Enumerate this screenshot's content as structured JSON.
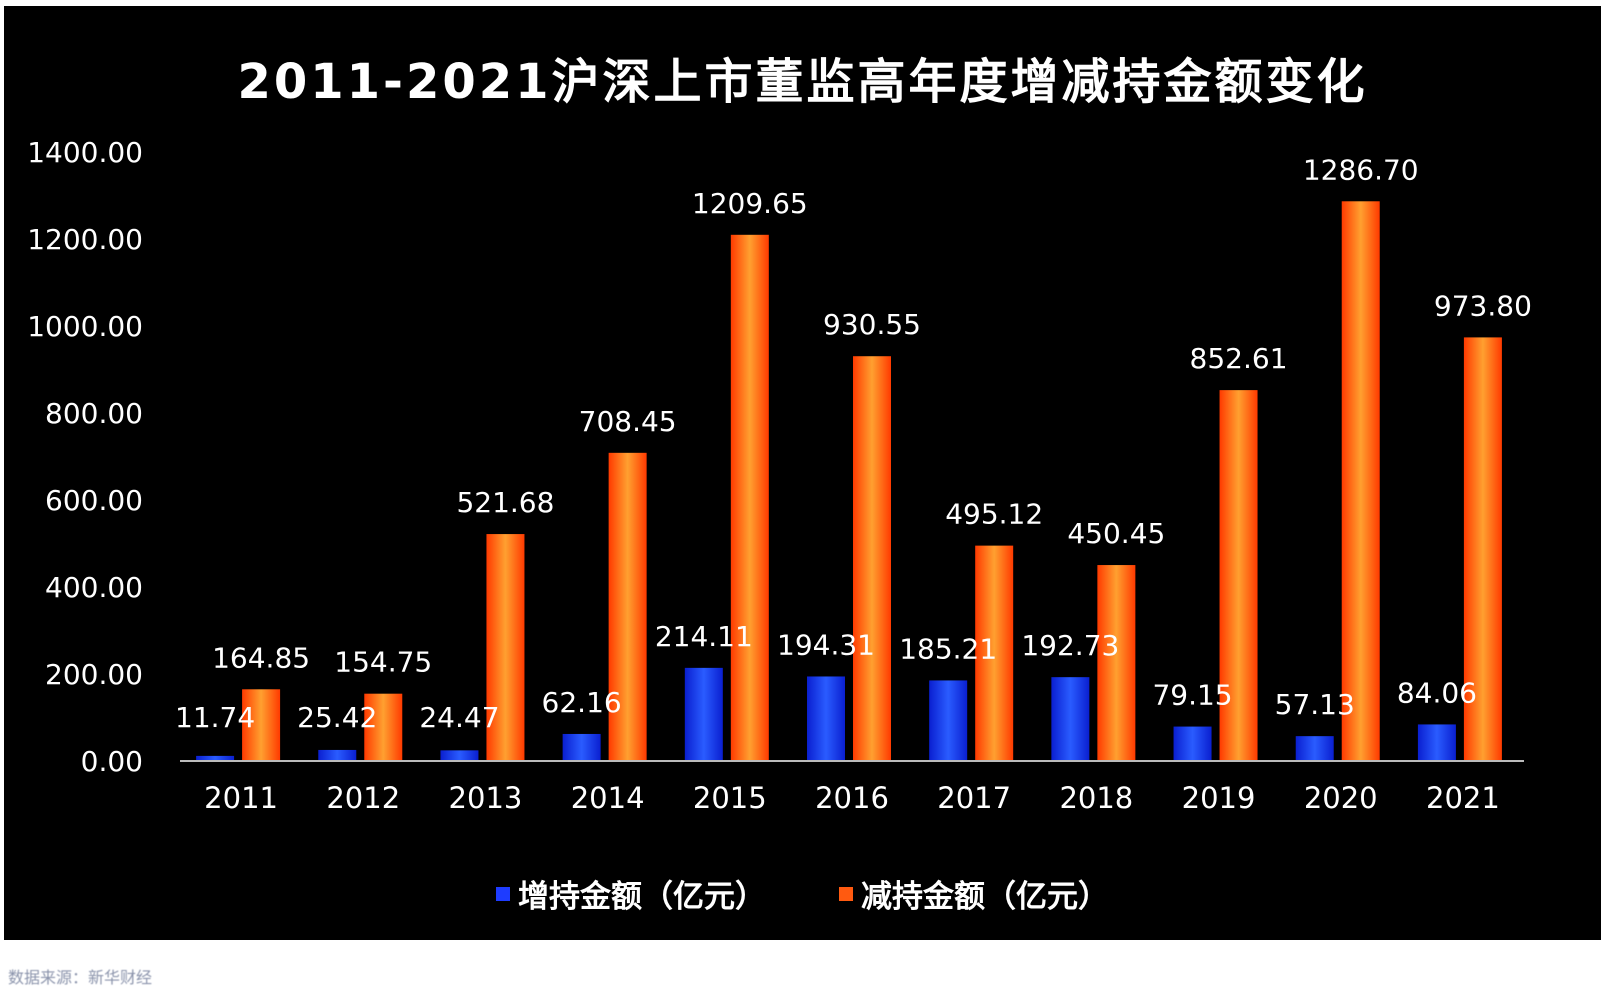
{
  "chart_data": {
    "type": "bar",
    "title": "2011-2021沪深上市董监高年度增减持金额变化",
    "categories": [
      "2011",
      "2012",
      "2013",
      "2014",
      "2015",
      "2016",
      "2017",
      "2018",
      "2019",
      "2020",
      "2021"
    ],
    "series": [
      {
        "name": "增持金额（亿元）",
        "color": "#1e3cff",
        "values": [
          11.74,
          25.42,
          24.47,
          62.16,
          214.11,
          194.31,
          185.21,
          192.73,
          79.15,
          57.13,
          84.06
        ],
        "labels": [
          "11.74",
          "25.42",
          "24.47",
          "62.16",
          "214.11",
          "194.31",
          "185.21",
          "192.73",
          "79.15",
          "57.13",
          "84.06"
        ]
      },
      {
        "name": "减持金额（亿元）",
        "color": "#ff5a10",
        "values": [
          164.85,
          154.75,
          521.68,
          708.45,
          1209.65,
          930.55,
          495.12,
          450.45,
          852.61,
          1286.7,
          973.8
        ],
        "labels": [
          "164.85",
          "154.75",
          "521.68",
          "708.45",
          "1209.65",
          "930.55",
          "495.12",
          "450.45",
          "852.61",
          "1286.70",
          "973.80"
        ]
      }
    ],
    "ylim": [
      0,
      1400
    ],
    "yticks": [
      "0.00",
      "200.00",
      "400.00",
      "600.00",
      "800.00",
      "1000.00",
      "1200.00",
      "1400.00"
    ],
    "grid": false,
    "legend_position": "bottom-center"
  },
  "source_note": "数据来源：新华财经"
}
